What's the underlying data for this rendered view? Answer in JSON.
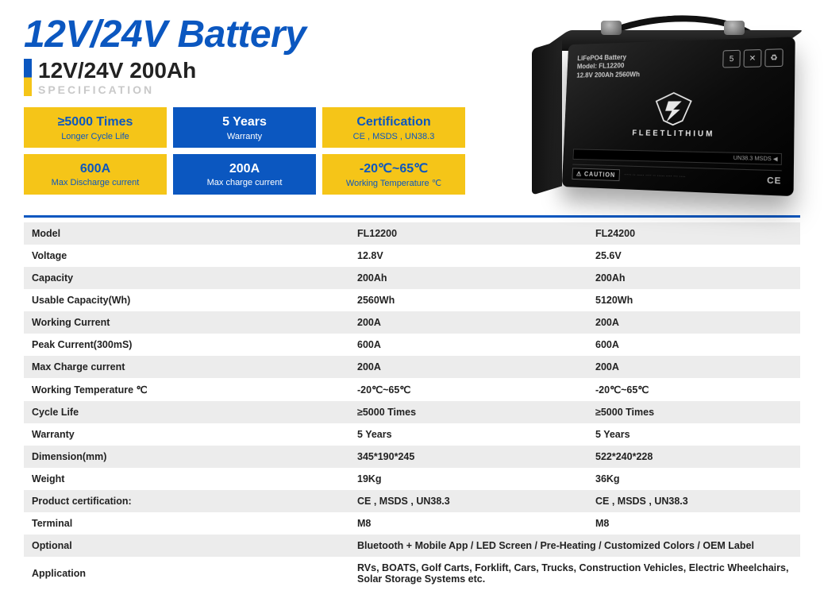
{
  "colors": {
    "brand_blue": "#0b57c0",
    "brand_yellow": "#f5c518",
    "row_alt": "#ececec",
    "text": "#222222",
    "muted": "#c9c9c9"
  },
  "header": {
    "main_title": "12V/24V Battery",
    "subtitle": "12V/24V 200Ah",
    "spec_label": "SPECIFICATION"
  },
  "badges": [
    {
      "big": "≥5000 Times",
      "small": "Longer Cycle Life",
      "variant": "yellow"
    },
    {
      "big": "5 Years",
      "small": "Warranty",
      "variant": "blue"
    },
    {
      "big": "Certification",
      "small": "CE , MSDS , UN38.3",
      "variant": "yellow"
    },
    {
      "big": "600A",
      "small": "Max Discharge current",
      "variant": "yellow"
    },
    {
      "big": "200A",
      "small": "Max charge current",
      "variant": "blue"
    },
    {
      "big": "-20℃~65℃",
      "small": "Working Temperature ℃",
      "variant": "yellow"
    }
  ],
  "battery_label": {
    "line1": "LiFePO4 Battery",
    "line2": "Model: FL12200",
    "line3": "12.8V 200Ah 2560Wh",
    "icons": [
      "5",
      "✕",
      "♻"
    ],
    "brand": "FLEETLITHIUM",
    "strip": "UN38.3  MSDS  ◀",
    "caution": "CAUTION",
    "ce": "CE"
  },
  "spec_table": {
    "columns": [
      "",
      "FL12200",
      "FL24200"
    ],
    "rows": [
      {
        "label": "Model",
        "a": "FL12200",
        "b": "FL24200"
      },
      {
        "label": "Voltage",
        "a": "12.8V",
        "b": "25.6V"
      },
      {
        "label": "Capacity",
        "a": "200Ah",
        "b": "200Ah"
      },
      {
        "label": "Usable Capacity(Wh)",
        "a": "2560Wh",
        "b": "5120Wh"
      },
      {
        "label": "Working Current",
        "a": "200A",
        "b": "200A"
      },
      {
        "label": "Peak Current(300mS)",
        "a": "600A",
        "b": "600A"
      },
      {
        "label": "Max Charge current",
        "a": "200A",
        "b": "200A"
      },
      {
        "label": "Working Temperature ℃",
        "a": "-20℃~65℃",
        "b": "-20℃~65℃"
      },
      {
        "label": "Cycle Life",
        "a": "≥5000 Times",
        "b": "≥5000 Times"
      },
      {
        "label": "Warranty",
        "a": "5 Years",
        "b": "5 Years"
      },
      {
        "label": "Dimension(mm)",
        "a": "345*190*245",
        "b": "522*240*228"
      },
      {
        "label": "Weight",
        "a": "19Kg",
        "b": "36Kg"
      },
      {
        "label": "Product certification:",
        "a": "CE , MSDS , UN38.3",
        "b": "CE , MSDS , UN38.3"
      },
      {
        "label": "Terminal",
        "a": "M8",
        "b": "M8"
      }
    ],
    "merged_rows": [
      {
        "label": "Optional",
        "value": "Bluetooth + Mobile App / LED Screen / Pre-Heating  / Customized Colors / OEM Label"
      },
      {
        "label": "Application",
        "value": "RVs, BOATS, Golf Carts, Forklift, Cars, Trucks, Construction Vehicles, Electric Wheelchairs, Solar Storage Systems etc."
      }
    ]
  }
}
